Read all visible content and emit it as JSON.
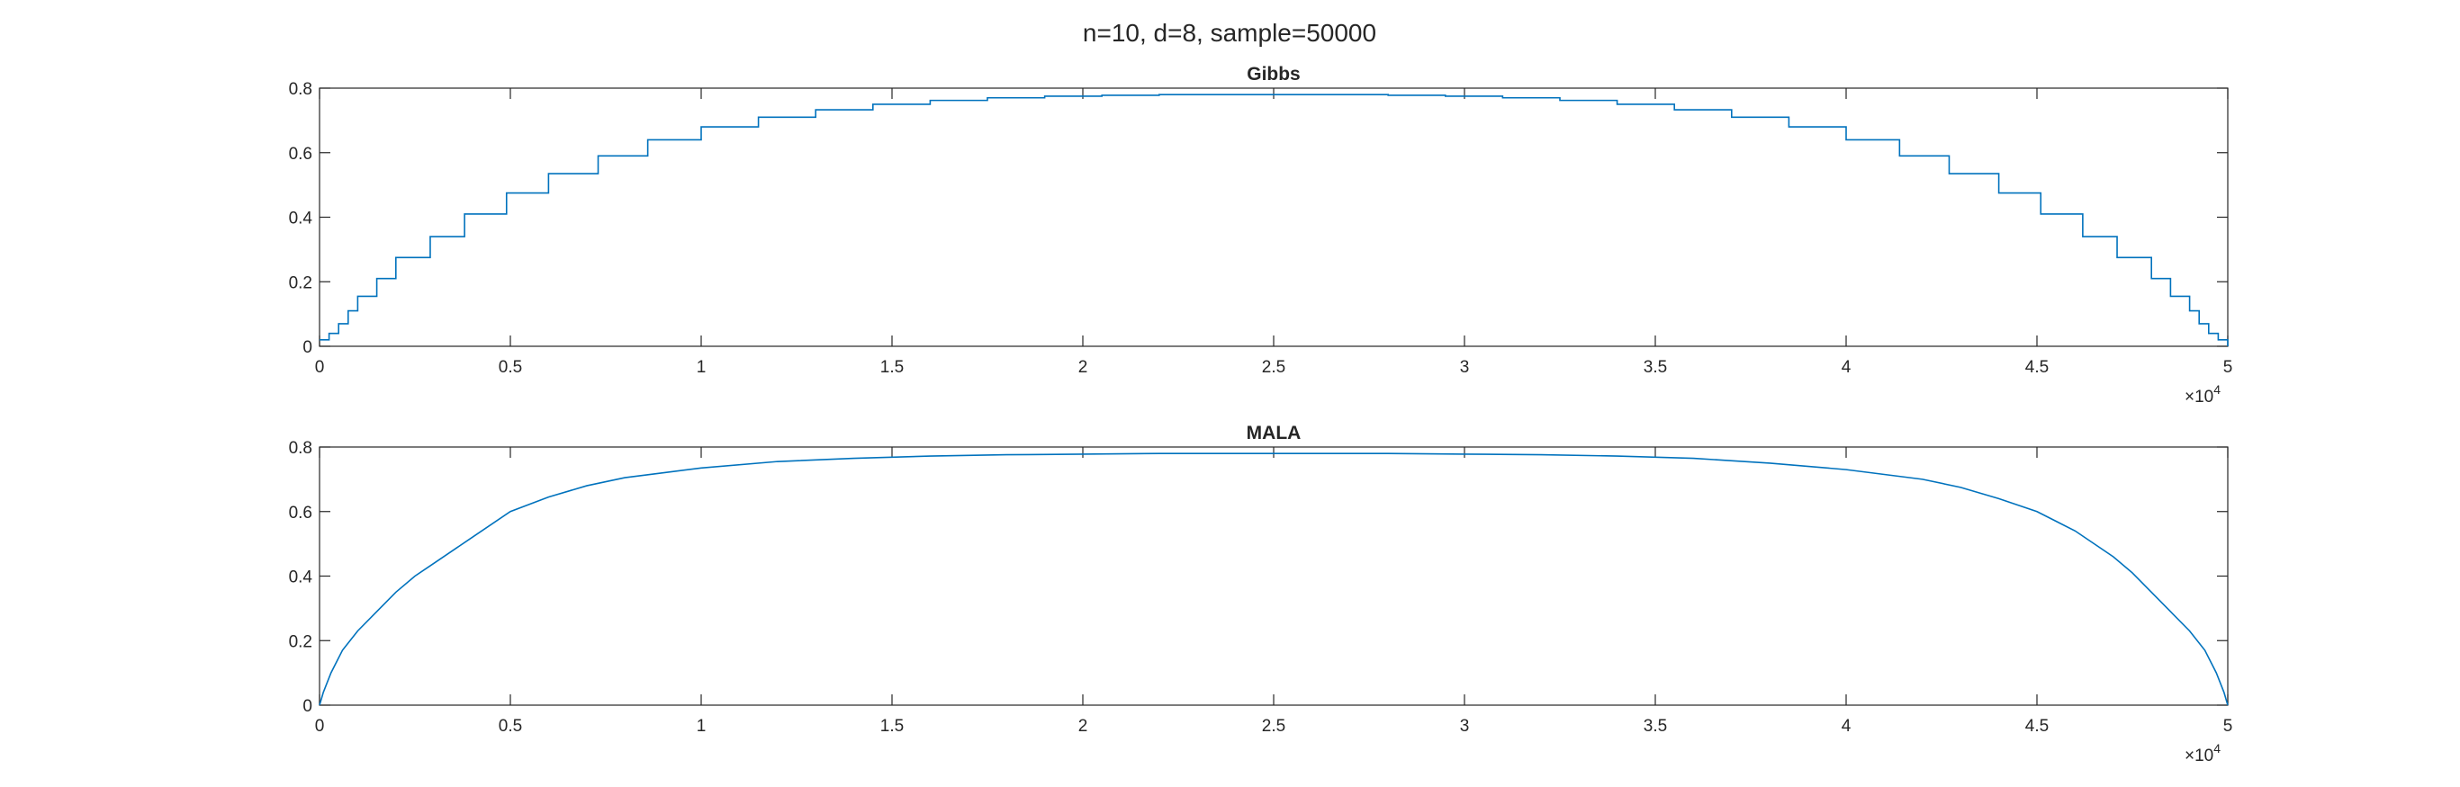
{
  "figure": {
    "title": "n=10, d=8, sample=50000",
    "background": "#ffffff",
    "axis_color": "#262626",
    "series_color": "#0072BD"
  },
  "chart_data": [
    {
      "type": "line",
      "style": "stairs",
      "title": "Gibbs",
      "xlabel": "",
      "ylabel": "",
      "xlim": [
        0,
        50000
      ],
      "ylim": [
        0,
        0.8
      ],
      "xticks": [
        0,
        5000,
        10000,
        15000,
        20000,
        25000,
        30000,
        35000,
        40000,
        45000,
        50000
      ],
      "xtick_labels": [
        "0",
        "0.5",
        "1",
        "1.5",
        "2",
        "2.5",
        "3",
        "3.5",
        "4",
        "4.5",
        "5"
      ],
      "x_exponent": {
        "base": "×10",
        "power": "4"
      },
      "yticks": [
        0,
        0.2,
        0.4,
        0.6,
        0.8
      ],
      "ytick_labels": [
        "0",
        "0.2",
        "0.4",
        "0.6",
        "0.8"
      ],
      "grid": false,
      "series": [
        {
          "x": [
            0,
            250,
            500,
            750,
            1000,
            1500,
            2000,
            2900,
            3800,
            4900,
            6000,
            7300,
            8600,
            10000,
            11500,
            13000,
            14500,
            16000,
            17500,
            19000,
            20500,
            22000,
            23500,
            25000,
            26500,
            28000,
            29500,
            31000,
            32500,
            34000,
            35500,
            37000,
            38500,
            40000,
            41400,
            42700,
            44000,
            45100,
            46200,
            47100,
            48000,
            48500,
            49000,
            49250,
            49500,
            49750,
            50000
          ],
          "y": [
            0.02,
            0.04,
            0.07,
            0.11,
            0.155,
            0.21,
            0.275,
            0.34,
            0.41,
            0.475,
            0.535,
            0.59,
            0.64,
            0.68,
            0.71,
            0.733,
            0.75,
            0.762,
            0.77,
            0.775,
            0.778,
            0.78,
            0.78,
            0.78,
            0.78,
            0.778,
            0.775,
            0.77,
            0.762,
            0.75,
            0.733,
            0.71,
            0.68,
            0.64,
            0.59,
            0.535,
            0.475,
            0.41,
            0.34,
            0.275,
            0.21,
            0.155,
            0.11,
            0.07,
            0.04,
            0.02,
            0.0
          ]
        }
      ]
    },
    {
      "type": "line",
      "title": "MALA",
      "xlabel": "",
      "ylabel": "",
      "xlim": [
        0,
        50000
      ],
      "ylim": [
        0,
        0.8
      ],
      "xticks": [
        0,
        5000,
        10000,
        15000,
        20000,
        25000,
        30000,
        35000,
        40000,
        45000,
        50000
      ],
      "xtick_labels": [
        "0",
        "0.5",
        "1",
        "1.5",
        "2",
        "2.5",
        "3",
        "3.5",
        "4",
        "4.5",
        "5"
      ],
      "x_exponent": {
        "base": "×10",
        "power": "4"
      },
      "yticks": [
        0,
        0.2,
        0.4,
        0.6,
        0.8
      ],
      "ytick_labels": [
        "0",
        "0.2",
        "0.4",
        "0.6",
        "0.8"
      ],
      "grid": false,
      "series": [
        {
          "x": [
            0,
            100,
            300,
            600,
            1000,
            1500,
            2000,
            2500,
            3000,
            4000,
            5000,
            6000,
            7000,
            8000,
            9000,
            10000,
            12000,
            14000,
            16000,
            18000,
            20000,
            22000,
            25000,
            28000,
            30000,
            32000,
            34000,
            36000,
            38000,
            40000,
            41000,
            42000,
            43000,
            44000,
            45000,
            46000,
            47000,
            47500,
            48000,
            48500,
            49000,
            49400,
            49700,
            49900,
            50000
          ],
          "y": [
            0.0,
            0.04,
            0.1,
            0.17,
            0.23,
            0.29,
            0.35,
            0.4,
            0.44,
            0.52,
            0.6,
            0.645,
            0.68,
            0.705,
            0.72,
            0.735,
            0.755,
            0.765,
            0.772,
            0.776,
            0.778,
            0.78,
            0.78,
            0.78,
            0.778,
            0.776,
            0.772,
            0.765,
            0.75,
            0.73,
            0.715,
            0.7,
            0.675,
            0.64,
            0.6,
            0.54,
            0.46,
            0.41,
            0.35,
            0.29,
            0.23,
            0.17,
            0.1,
            0.04,
            0.0
          ]
        }
      ]
    }
  ]
}
